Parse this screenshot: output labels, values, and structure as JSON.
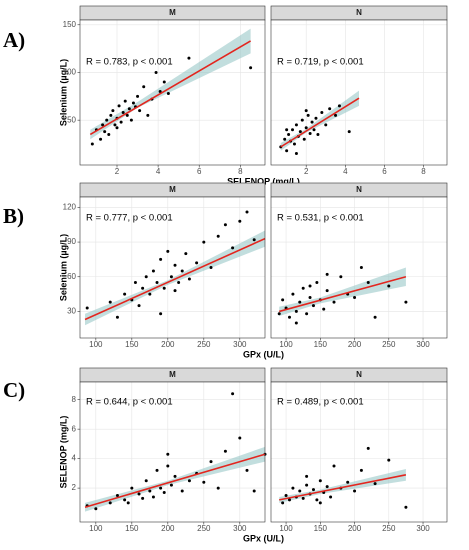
{
  "chart_data": [
    {
      "type": "scatter",
      "row_label": "A)",
      "ylabel": "Selenium (µg/L)",
      "xlabel": "SELENOP (mg/L)",
      "xlim": [
        0.2,
        9.2
      ],
      "xticks": [
        2,
        4,
        6,
        8
      ],
      "ylim": [
        3,
        155
      ],
      "yticks": [
        50,
        100,
        150
      ],
      "grid": true,
      "panels": [
        {
          "strip": "M",
          "annotation": "R = 0.783, p < 0.001",
          "x": [
            0.8,
            1.0,
            1.2,
            1.3,
            1.5,
            1.6,
            1.7,
            1.8,
            1.9,
            2.0,
            2.1,
            2.2,
            2.3,
            2.4,
            2.5,
            2.6,
            2.7,
            2.8,
            3.0,
            3.1,
            3.3,
            3.5,
            3.7,
            3.9,
            4.1,
            4.3,
            4.5,
            5.5,
            8.5,
            1.4,
            2.0,
            2.9
          ],
          "y": [
            25,
            40,
            30,
            45,
            50,
            35,
            55,
            60,
            45,
            52,
            65,
            48,
            58,
            70,
            55,
            62,
            50,
            68,
            75,
            60,
            85,
            55,
            72,
            100,
            80,
            90,
            78,
            115,
            105,
            38,
            42,
            64
          ],
          "fit": {
            "x": [
              0.7,
              8.5
            ],
            "y": [
              35,
              133
            ]
          },
          "band": {
            "x": [
              0.7,
              3,
              8.5
            ],
            "low": [
              30,
              63,
              120
            ],
            "high": [
              40,
              69,
              146
            ]
          }
        },
        {
          "strip": "N",
          "annotation": "R = 0.719, p < 0.001",
          "x": [
            0.7,
            0.9,
            1.0,
            1.1,
            1.2,
            1.3,
            1.4,
            1.5,
            1.6,
            1.7,
            1.8,
            1.9,
            2.0,
            2.1,
            2.2,
            2.3,
            2.4,
            2.5,
            2.6,
            2.8,
            3.0,
            3.2,
            3.5,
            3.7,
            4.2,
            1.0,
            1.5,
            2.0
          ],
          "y": [
            22,
            30,
            18,
            35,
            28,
            40,
            25,
            45,
            33,
            38,
            50,
            30,
            42,
            55,
            36,
            48,
            40,
            52,
            35,
            58,
            45,
            62,
            55,
            65,
            38,
            40,
            15,
            60
          ],
          "fit": {
            "x": [
              0.7,
              4.7
            ],
            "y": [
              22,
              73
            ]
          },
          "band": {
            "x": [
              0.7,
              2,
              4.7
            ],
            "low": [
              18,
              37,
              65
            ],
            "high": [
              26,
              41,
              81
            ]
          }
        }
      ]
    },
    {
      "type": "scatter",
      "row_label": "B)",
      "ylabel": "Selenium (µg/L)",
      "xlabel": "GPx (U/L)",
      "xlim": [
        78,
        335
      ],
      "xticks": [
        100,
        150,
        200,
        250,
        300
      ],
      "ylim": [
        7,
        129
      ],
      "yticks": [
        30,
        60,
        90,
        120
      ],
      "grid": true,
      "panels": [
        {
          "strip": "M",
          "annotation": "R = 0.777, p < 0.001",
          "x": [
            88,
            120,
            130,
            140,
            150,
            155,
            160,
            165,
            170,
            175,
            180,
            185,
            190,
            195,
            200,
            205,
            210,
            215,
            220,
            225,
            230,
            240,
            250,
            260,
            270,
            280,
            290,
            300,
            310,
            320,
            190,
            210
          ],
          "y": [
            33,
            38,
            25,
            45,
            40,
            55,
            35,
            50,
            60,
            45,
            65,
            55,
            75,
            50,
            82,
            60,
            70,
            55,
            65,
            80,
            58,
            72,
            90,
            68,
            95,
            105,
            85,
            108,
            116,
            92,
            28,
            48
          ],
          "fit": {
            "x": [
              85,
              335
            ],
            "y": [
              23,
              93
            ]
          },
          "band": {
            "x": [
              85,
              200,
              335
            ],
            "low": [
              18,
              53,
              86
            ],
            "high": [
              28,
              57,
              100
            ]
          }
        },
        {
          "strip": "N",
          "annotation": "R = 0.531, p < 0.001",
          "x": [
            90,
            95,
            100,
            105,
            110,
            115,
            120,
            125,
            130,
            135,
            140,
            145,
            150,
            155,
            160,
            170,
            180,
            190,
            200,
            210,
            220,
            230,
            250,
            275,
            115,
            135,
            160
          ],
          "y": [
            28,
            40,
            33,
            25,
            45,
            30,
            38,
            50,
            28,
            42,
            35,
            55,
            40,
            32,
            48,
            38,
            60,
            45,
            42,
            68,
            55,
            25,
            52,
            38,
            20,
            52,
            62
          ],
          "fit": {
            "x": [
              90,
              275
            ],
            "y": [
              30,
              60
            ]
          },
          "band": {
            "x": [
              90,
              150,
              275
            ],
            "low": [
              26,
              37,
              52
            ],
            "high": [
              34,
              42,
              68
            ]
          }
        }
      ]
    },
    {
      "type": "scatter",
      "row_label": "C)",
      "ylabel": "SELENOP (mg/L)",
      "xlabel": "GPx (U/L)",
      "xlim": [
        78,
        335
      ],
      "xticks": [
        100,
        150,
        200,
        250,
        300
      ],
      "ylim": [
        -0.3,
        9.2
      ],
      "yticks": [
        2,
        4,
        6,
        8
      ],
      "grid": true,
      "panels": [
        {
          "strip": "M",
          "annotation": "R = 0.644, p < 0.001",
          "x": [
            88,
            100,
            120,
            130,
            140,
            150,
            160,
            165,
            170,
            175,
            180,
            185,
            190,
            195,
            200,
            205,
            210,
            220,
            230,
            240,
            250,
            260,
            270,
            280,
            290,
            300,
            310,
            320,
            335,
            145,
            200
          ],
          "y": [
            0.8,
            0.6,
            1.0,
            1.5,
            1.2,
            2.0,
            1.6,
            1.3,
            2.5,
            1.8,
            1.4,
            3.2,
            2.0,
            1.7,
            4.3,
            2.2,
            2.8,
            1.8,
            2.5,
            3.0,
            2.4,
            3.8,
            2.0,
            4.5,
            8.4,
            5.4,
            3.2,
            1.8,
            4.3,
            1.0,
            3.5
          ],
          "fit": {
            "x": [
              85,
              335
            ],
            "y": [
              0.7,
              4.3
            ]
          },
          "band": {
            "x": [
              85,
              200,
              335
            ],
            "low": [
              0.4,
              2.2,
              3.8
            ],
            "high": [
              1.0,
              2.5,
              4.8
            ]
          }
        },
        {
          "strip": "N",
          "annotation": "R = 0.489, p < 0.001",
          "x": [
            95,
            100,
            105,
            110,
            115,
            120,
            125,
            130,
            135,
            140,
            145,
            150,
            155,
            160,
            165,
            170,
            180,
            190,
            200,
            210,
            220,
            230,
            250,
            275,
            130,
            150
          ],
          "y": [
            1.0,
            1.5,
            1.2,
            2.0,
            1.4,
            1.8,
            1.3,
            2.2,
            1.6,
            1.9,
            1.2,
            2.5,
            1.7,
            2.1,
            1.4,
            3.5,
            2.0,
            2.4,
            1.8,
            3.2,
            4.7,
            2.3,
            3.9,
            0.7,
            2.8,
            1.0
          ],
          "fit": {
            "x": [
              90,
              275
            ],
            "y": [
              1.2,
              2.9
            ]
          },
          "band": {
            "x": [
              90,
              150,
              275
            ],
            "low": [
              1.0,
              1.6,
              2.5
            ],
            "high": [
              1.4,
              1.9,
              3.3
            ]
          }
        }
      ]
    }
  ]
}
